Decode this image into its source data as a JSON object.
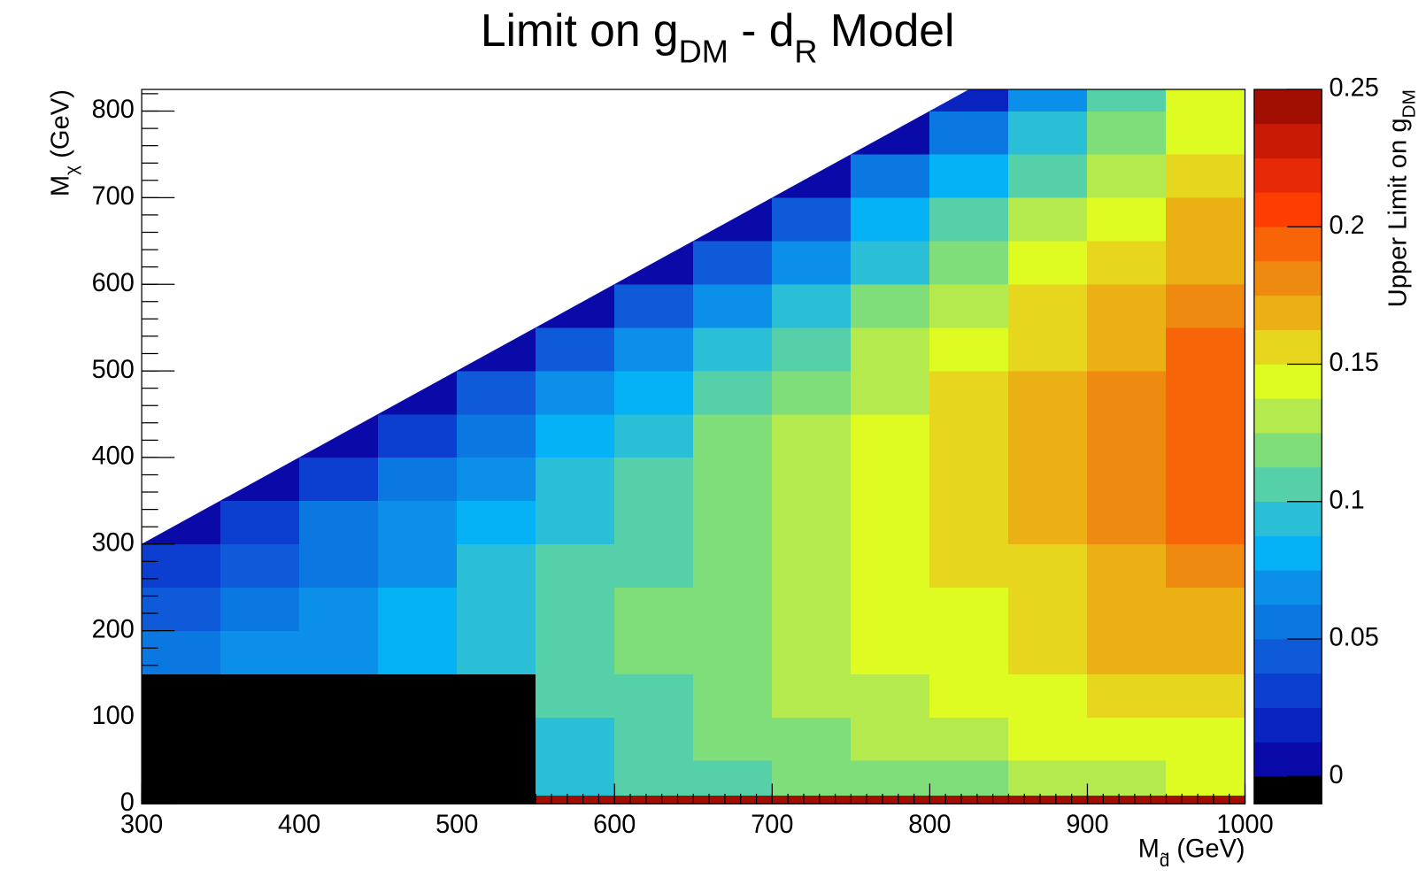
{
  "chart_data": {
    "type": "contour",
    "title": [
      "Limit on g",
      "DM",
      " - d",
      "R",
      " Model"
    ],
    "x_label": [
      "M",
      "d̃",
      " (GeV)"
    ],
    "y_label": [
      "M",
      "χ",
      " (GeV)"
    ],
    "z_label": [
      "Upper Limit on g",
      "DM"
    ],
    "xlim": [
      300,
      1000
    ],
    "ylim": [
      0,
      825
    ],
    "zlim": [
      -0.01,
      0.25
    ],
    "xticks": [
      300,
      400,
      500,
      600,
      700,
      800,
      900,
      1000
    ],
    "yticks": [
      0,
      100,
      200,
      300,
      400,
      500,
      600,
      700,
      800
    ],
    "zticks": [
      0,
      0.05,
      0.1,
      0.15,
      0.2,
      0.25
    ],
    "x_edges": [
      300,
      350,
      400,
      450,
      500,
      550,
      600,
      650,
      700,
      750,
      800,
      850,
      900,
      950,
      1000
    ],
    "y_edges": [
      0,
      10,
      50,
      100,
      150,
      200,
      250,
      300,
      350,
      400,
      450,
      500,
      550,
      600,
      650,
      700,
      750,
      800,
      825
    ],
    "z": [
      [
        0,
        0,
        0,
        0,
        0,
        0.24,
        0.24,
        0.24,
        0.24,
        0.24,
        0.24,
        0.24,
        0.24,
        0.24
      ],
      [
        0,
        0,
        0,
        0,
        0,
        0.095,
        0.101,
        0.107,
        0.113,
        0.118,
        0.124,
        0.129,
        0.135,
        0.14
      ],
      [
        0,
        0,
        0,
        0,
        0,
        0.099,
        0.106,
        0.113,
        0.119,
        0.126,
        0.132,
        0.138,
        0.144,
        0.15
      ],
      [
        0,
        0,
        0,
        0,
        0,
        0.103,
        0.11,
        0.118,
        0.125,
        0.133,
        0.14,
        0.147,
        0.153,
        0.16
      ],
      [
        0.053,
        0.064,
        0.075,
        0.085,
        0.095,
        0.105,
        0.114,
        0.122,
        0.131,
        0.139,
        0.147,
        0.155,
        0.163,
        0.17
      ],
      [
        0.043,
        0.057,
        0.069,
        0.081,
        0.092,
        0.103,
        0.113,
        0.122,
        0.132,
        0.141,
        0.15,
        0.158,
        0.167,
        0.175
      ],
      [
        0.028,
        0.046,
        0.061,
        0.075,
        0.088,
        0.1,
        0.111,
        0.122,
        0.132,
        0.142,
        0.152,
        0.162,
        0.171,
        0.18
      ],
      [
        0.005,
        0.032,
        0.051,
        0.068,
        0.083,
        0.097,
        0.111,
        0.123,
        0.135,
        0.147,
        0.158,
        0.169,
        0.18,
        0.19
      ],
      [
        null,
        0.005,
        0.034,
        0.056,
        0.074,
        0.09,
        0.106,
        0.12,
        0.134,
        0.147,
        0.16,
        0.172,
        0.183,
        0.195
      ],
      [
        null,
        null,
        0.005,
        0.037,
        0.06,
        0.08,
        0.097,
        0.114,
        0.13,
        0.144,
        0.158,
        0.172,
        0.185,
        0.198
      ],
      [
        null,
        null,
        null,
        0.005,
        0.039,
        0.063,
        0.084,
        0.103,
        0.12,
        0.136,
        0.152,
        0.167,
        0.181,
        0.195
      ],
      [
        null,
        null,
        null,
        null,
        0.005,
        0.041,
        0.066,
        0.088,
        0.108,
        0.126,
        0.143,
        0.159,
        0.175,
        0.19
      ],
      [
        null,
        null,
        null,
        null,
        null,
        0.005,
        0.043,
        0.07,
        0.093,
        0.114,
        0.133,
        0.151,
        0.169,
        0.185
      ],
      [
        null,
        null,
        null,
        null,
        null,
        null,
        0.005,
        0.045,
        0.073,
        0.097,
        0.118,
        0.138,
        0.157,
        0.175
      ],
      [
        null,
        null,
        null,
        null,
        null,
        null,
        null,
        0.005,
        0.048,
        0.079,
        0.105,
        0.128,
        0.15,
        0.17
      ],
      [
        null,
        null,
        null,
        null,
        null,
        null,
        null,
        null,
        0.005,
        0.052,
        0.084,
        0.112,
        0.137,
        0.16
      ],
      [
        null,
        null,
        null,
        null,
        null,
        null,
        null,
        null,
        null,
        0.005,
        0.057,
        0.092,
        0.123,
        0.15
      ],
      [
        null,
        null,
        null,
        null,
        null,
        null,
        null,
        null,
        null,
        null,
        0.024,
        0.074,
        0.112,
        0.145
      ]
    ],
    "below_color": "#000000",
    "palette": [
      "#0a0aa8",
      "#0a24c0",
      "#0c3fcf",
      "#0e5ad8",
      "#0a78e0",
      "#0c8fe8",
      "#05b2f5",
      "#2abfd6",
      "#55d0a8",
      "#7fdd7a",
      "#b4ea4e",
      "#defc22",
      "#e6d61e",
      "#eab014",
      "#ef8a10",
      "#f86408",
      "#fe3e00",
      "#e62a08",
      "#c81a05",
      "#a00f02"
    ]
  }
}
